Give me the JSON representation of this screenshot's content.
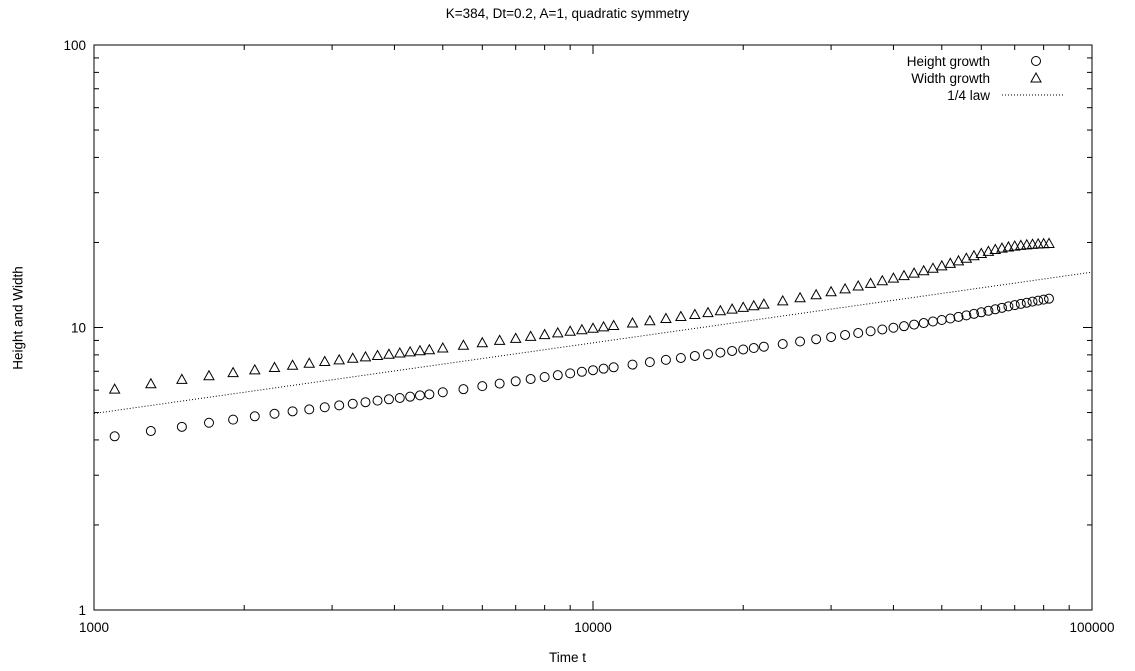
{
  "chart_data": {
    "type": "scatter",
    "title": "K=384, Dt=0.2, A=1, quadratic symmetry",
    "xlabel": "Time t",
    "ylabel": "Height and Width",
    "x_scale": "log",
    "y_scale": "log",
    "xlim": [
      1000,
      100000
    ],
    "ylim": [
      1,
      100
    ],
    "x_ticks": [
      1000,
      10000,
      100000
    ],
    "x_tick_labels": [
      "1000",
      "10000",
      "100000"
    ],
    "y_ticks": [
      1,
      10,
      100
    ],
    "y_tick_labels": [
      "1",
      "10",
      "100"
    ],
    "grid": false,
    "legend_position": "top-right",
    "series": [
      {
        "name": "Height growth",
        "marker": "circle",
        "x": [
          1100,
          1300,
          1500,
          1700,
          1900,
          2100,
          2300,
          2500,
          2700,
          2900,
          3100,
          3300,
          3500,
          3700,
          3900,
          4100,
          4300,
          4500,
          4700,
          5000,
          5500,
          6000,
          6500,
          7000,
          7500,
          8000,
          8500,
          9000,
          9500,
          10000,
          10500,
          11000,
          12000,
          13000,
          14000,
          15000,
          16000,
          17000,
          18000,
          19000,
          20000,
          21000,
          22000,
          24000,
          26000,
          28000,
          30000,
          32000,
          34000,
          36000,
          38000,
          40000,
          42000,
          44000,
          46000,
          48000,
          50000,
          52000,
          54000,
          56000,
          58000,
          60000,
          62000,
          64000,
          66000,
          68000,
          70000,
          72000,
          74000,
          76000,
          78000,
          80000,
          82000
        ],
        "y": [
          4.12,
          4.3,
          4.45,
          4.6,
          4.72,
          4.85,
          4.95,
          5.05,
          5.13,
          5.22,
          5.3,
          5.37,
          5.44,
          5.51,
          5.57,
          5.63,
          5.69,
          5.75,
          5.8,
          5.9,
          6.05,
          6.2,
          6.33,
          6.45,
          6.57,
          6.68,
          6.78,
          6.88,
          6.97,
          7.06,
          7.15,
          7.23,
          7.39,
          7.54,
          7.68,
          7.8,
          7.93,
          8.04,
          8.15,
          8.26,
          8.36,
          8.46,
          8.55,
          8.74,
          8.92,
          9.09,
          9.25,
          9.41,
          9.56,
          9.7,
          9.84,
          9.98,
          10.11,
          10.24,
          10.37,
          10.5,
          10.63,
          10.76,
          10.9,
          11.04,
          11.18,
          11.32,
          11.46,
          11.6,
          11.74,
          11.88,
          12.0,
          12.12,
          12.24,
          12.35,
          12.45,
          12.55,
          12.65
        ]
      },
      {
        "name": "Width growth",
        "marker": "triangle",
        "x": [
          1100,
          1300,
          1500,
          1700,
          1900,
          2100,
          2300,
          2500,
          2700,
          2900,
          3100,
          3300,
          3500,
          3700,
          3900,
          4100,
          4300,
          4500,
          4700,
          5000,
          5500,
          6000,
          6500,
          7000,
          7500,
          8000,
          8500,
          9000,
          9500,
          10000,
          10500,
          11000,
          12000,
          13000,
          14000,
          15000,
          16000,
          17000,
          18000,
          19000,
          20000,
          21000,
          22000,
          24000,
          26000,
          28000,
          30000,
          32000,
          34000,
          36000,
          38000,
          40000,
          42000,
          44000,
          46000,
          48000,
          50000,
          52000,
          54000,
          56000,
          58000,
          60000,
          62000,
          64000,
          66000,
          68000,
          70000,
          72000,
          74000,
          76000,
          78000,
          80000,
          82000
        ],
        "y": [
          6.05,
          6.32,
          6.55,
          6.75,
          6.92,
          7.08,
          7.22,
          7.35,
          7.47,
          7.58,
          7.68,
          7.78,
          7.87,
          7.96,
          8.04,
          8.12,
          8.2,
          8.27,
          8.34,
          8.46,
          8.65,
          8.83,
          9.0,
          9.15,
          9.3,
          9.44,
          9.57,
          9.7,
          9.82,
          9.94,
          10.05,
          10.16,
          10.37,
          10.57,
          10.76,
          10.94,
          11.12,
          11.29,
          11.46,
          11.62,
          11.78,
          11.94,
          12.1,
          12.42,
          12.74,
          13.06,
          13.38,
          13.7,
          14.02,
          14.33,
          14.64,
          14.95,
          15.26,
          15.57,
          15.88,
          16.2,
          16.53,
          16.87,
          17.22,
          17.58,
          17.94,
          18.28,
          18.6,
          18.88,
          19.1,
          19.28,
          19.42,
          19.53,
          19.62,
          19.7,
          19.76,
          19.8,
          19.84
        ]
      },
      {
        "name": "1/4 law",
        "style": "dotted-line",
        "x": [
          1000,
          100000
        ],
        "y": [
          4.96,
          15.7
        ]
      }
    ]
  }
}
